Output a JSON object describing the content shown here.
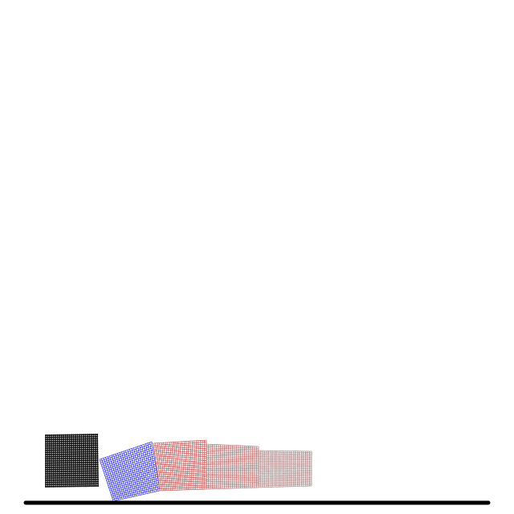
{
  "scene": {
    "background_color": "#ffffff",
    "ground_color": "#000000",
    "segments": [
      {
        "name": "segment-black",
        "color": "#111111",
        "style": "dots-dense"
      },
      {
        "name": "segment-blue",
        "color": "#1a1aee",
        "style": "grid"
      },
      {
        "name": "segment-red",
        "color": "#c23b3b",
        "style": "grid"
      },
      {
        "name": "segment-rose",
        "color": "#b55a5a",
        "style": "grid"
      },
      {
        "name": "segment-mauve",
        "color": "#a87a7a",
        "style": "grid"
      }
    ]
  }
}
